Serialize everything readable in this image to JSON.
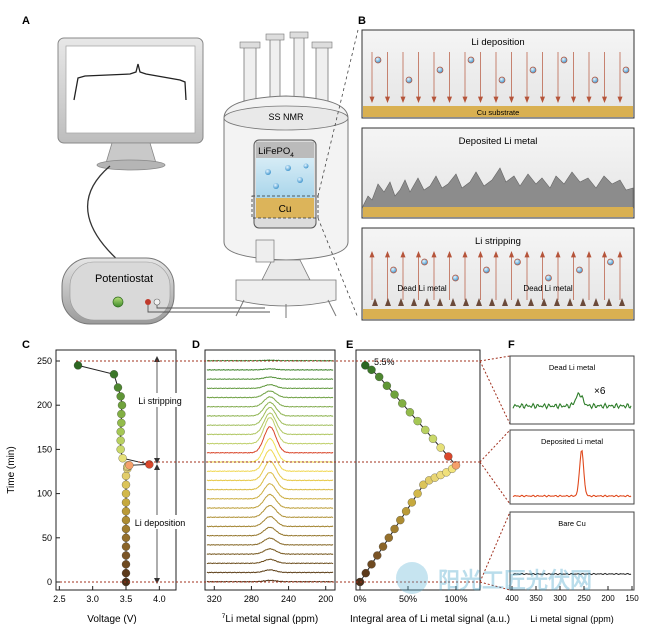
{
  "panel_labels": {
    "a": "A",
    "b": "B",
    "c": "C",
    "d": "D",
    "e": "E",
    "f": "F"
  },
  "panel_a": {
    "instrument_label": "SS NMR",
    "potentiostat_label": "Potentiostat",
    "cathode_label": "LiFePO",
    "cathode_subscript": "4",
    "anode_label": "Cu"
  },
  "panel_b": {
    "deposition_title": "Li deposition",
    "substrate_label": "Cu substrate",
    "deposited_title": "Deposited Li metal",
    "stripping_title": "Li stripping",
    "dead_label_1": "Dead Li metal",
    "dead_label_2": "Dead Li metal"
  },
  "panel_c": {
    "ylabel": "Time (min)",
    "xlabel": "Voltage (V)",
    "stripping_label": "Li stripping",
    "deposition_label": "Li deposition",
    "xticks": [
      "2.5",
      "3.0",
      "3.5",
      "4.0"
    ],
    "yticks": [
      "0",
      "50",
      "100",
      "150",
      "200",
      "250"
    ]
  },
  "panel_d": {
    "xlabel_sup": "7",
    "xlabel": "Li metal signal (ppm)",
    "xticks": [
      "320",
      "280",
      "240",
      "200"
    ]
  },
  "panel_e": {
    "percent_label": "5.5%",
    "xlabel": "Integral area of Li metal signal (a.u.)",
    "xticks": [
      "0%",
      "50%",
      "100%"
    ]
  },
  "panel_f": {
    "dead_title": "Dead Li metal",
    "multiplier": "×6",
    "deposited_title": "Deposited Li metal",
    "bare_title": "Bare Cu",
    "xlabel": "Li metal signal (ppm)",
    "xticks": [
      "400",
      "350",
      "300",
      "250",
      "200",
      "150"
    ]
  },
  "watermark": {
    "text": "阳光工匠光伏网"
  },
  "chart_data": [
    {
      "type": "scatter",
      "title": "",
      "xlabel": "Voltage (V)",
      "ylabel": "Time (min)",
      "xlim": [
        2.5,
        4.2
      ],
      "ylim": [
        0,
        250
      ],
      "points_x": [
        3.5,
        3.5,
        3.5,
        3.5,
        3.5,
        3.5,
        3.5,
        3.5,
        3.5,
        3.5,
        3.5,
        3.5,
        3.5,
        3.52,
        3.52,
        3.53,
        3.53,
        3.55,
        3.85,
        3.45,
        3.42,
        3.42,
        3.42,
        3.43,
        3.43,
        3.44,
        3.42,
        3.38,
        3.32,
        2.78
      ],
      "points_y": [
        0,
        10,
        20,
        30,
        40,
        50,
        60,
        70,
        80,
        90,
        100,
        110,
        120,
        128,
        130,
        132,
        131,
        132,
        133,
        140,
        150,
        160,
        170,
        180,
        190,
        200,
        210,
        220,
        235,
        245
      ],
      "colors": [
        "#4a2e17",
        "#5c3a1b",
        "#6e4a20",
        "#7a5426",
        "#8a6428",
        "#95702c",
        "#a17e2f",
        "#ad8c32",
        "#ba9a37",
        "#c6a93e",
        "#d2b84a",
        "#dbc45a",
        "#e2cd6a",
        "#e8d574",
        "#efdc7c",
        "#f0e07a",
        "#f2e47c",
        "#f5a06a",
        "#d9472b",
        "#e6e078",
        "#c9d86a",
        "#b8d060",
        "#a5c755",
        "#93bb4b",
        "#82af43",
        "#6fa23c",
        "#5f9536",
        "#4e8730",
        "#3c772a",
        "#2d6622"
      ]
    },
    {
      "type": "line",
      "title": "",
      "xlabel": "Li metal signal (ppm)",
      "xlim": [
        330,
        190
      ],
      "series_count": 25,
      "peak_ppm": 260,
      "peak_heights": [
        0.05,
        0.1,
        0.15,
        0.2,
        0.26,
        0.32,
        0.38,
        0.45,
        0.52,
        0.58,
        0.66,
        0.74,
        0.82,
        0.9,
        1.0,
        1.0,
        0.82,
        0.68,
        0.52,
        0.38,
        0.25,
        0.14,
        0.08,
        0.04,
        0.02
      ]
    },
    {
      "type": "scatter",
      "title": "",
      "xlabel": "Integral area of Li metal signal (a.u.)",
      "xlim": [
        0,
        125
      ],
      "ylim": [
        0,
        250
      ],
      "points_x": [
        0,
        6,
        12,
        18,
        24,
        30,
        36,
        42,
        48,
        54,
        60,
        66,
        72,
        78,
        84,
        90,
        96,
        100,
        92,
        84,
        76,
        68,
        60,
        52,
        44,
        36,
        28,
        20,
        12,
        5.5
      ],
      "points_y": [
        0,
        10,
        20,
        30,
        40,
        50,
        60,
        70,
        80,
        90,
        100,
        110,
        115,
        118,
        121,
        124,
        128,
        132,
        142,
        152,
        162,
        172,
        182,
        192,
        202,
        212,
        222,
        232,
        240,
        245
      ]
    },
    {
      "type": "line",
      "title": "",
      "xlabel": "Li metal signal (ppm)",
      "xlim": [
        400,
        150
      ],
      "series": [
        {
          "name": "Dead Li metal",
          "peak_ppm": 260,
          "peak_height": 0.5
        },
        {
          "name": "Deposited Li metal",
          "peak_ppm": 255,
          "peak_height": 1.0
        },
        {
          "name": "Bare Cu",
          "peak_ppm": 0,
          "peak_height": 0
        }
      ]
    }
  ]
}
